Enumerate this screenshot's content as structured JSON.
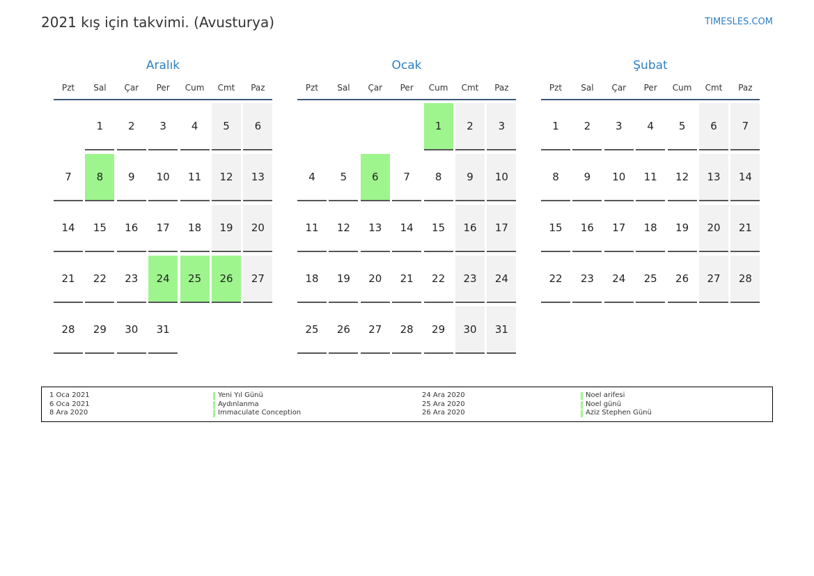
{
  "header": {
    "title": "2021 kış için takvimi. (Avusturya)",
    "site": "TIMESLES.COM"
  },
  "months": [
    {
      "name": "Aralık",
      "weekdays": [
        "Pzt",
        "Sal",
        "Çar",
        "Per",
        "Cum",
        "Cmt",
        "Paz"
      ],
      "weeks": [
        [
          null,
          1,
          2,
          3,
          4,
          5,
          6
        ],
        [
          7,
          8,
          9,
          10,
          11,
          12,
          13
        ],
        [
          14,
          15,
          16,
          17,
          18,
          19,
          20
        ],
        [
          21,
          22,
          23,
          24,
          25,
          26,
          27
        ],
        [
          28,
          29,
          30,
          31,
          null,
          null,
          null
        ]
      ],
      "holidays": [
        8,
        24,
        25,
        26
      ]
    },
    {
      "name": "Ocak",
      "weekdays": [
        "Pzt",
        "Sal",
        "Çar",
        "Per",
        "Cum",
        "Cmt",
        "Paz"
      ],
      "weeks": [
        [
          null,
          null,
          null,
          null,
          1,
          2,
          3
        ],
        [
          4,
          5,
          6,
          7,
          8,
          9,
          10
        ],
        [
          11,
          12,
          13,
          14,
          15,
          16,
          17
        ],
        [
          18,
          19,
          20,
          21,
          22,
          23,
          24
        ],
        [
          25,
          26,
          27,
          28,
          29,
          30,
          31
        ]
      ],
      "holidays": [
        1,
        6
      ]
    },
    {
      "name": "Şubat",
      "weekdays": [
        "Pzt",
        "Sal",
        "Çar",
        "Per",
        "Cum",
        "Cmt",
        "Paz"
      ],
      "weeks": [
        [
          1,
          2,
          3,
          4,
          5,
          6,
          7
        ],
        [
          8,
          9,
          10,
          11,
          12,
          13,
          14
        ],
        [
          15,
          16,
          17,
          18,
          19,
          20,
          21
        ],
        [
          22,
          23,
          24,
          25,
          26,
          27,
          28
        ]
      ],
      "holidays": []
    }
  ],
  "holiday_list": [
    [
      {
        "date": "1 Oca 2021",
        "name": "Yeni Yıl Günü"
      },
      {
        "date": "6 Oca 2021",
        "name": "Aydınlanma"
      },
      {
        "date": "8 Ara 2020",
        "name": "Immaculate Conception"
      }
    ],
    [
      {
        "date": "24 Ara 2020",
        "name": "Noel arifesi"
      },
      {
        "date": "25 Ara 2020",
        "name": "Noel günü"
      },
      {
        "date": "26 Ara 2020",
        "name": "Aziz Stephen Günü"
      }
    ]
  ]
}
